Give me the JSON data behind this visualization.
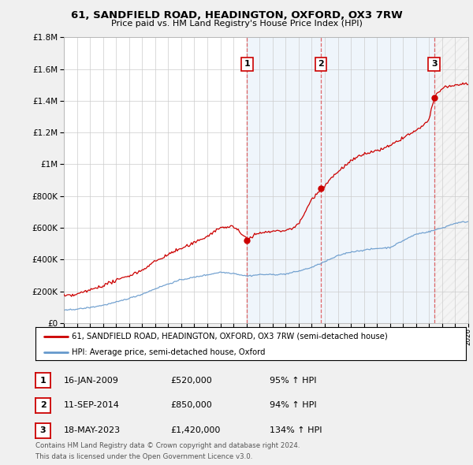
{
  "title": "61, SANDFIELD ROAD, HEADINGTON, OXFORD, OX3 7RW",
  "subtitle": "Price paid vs. HM Land Registry's House Price Index (HPI)",
  "legend_line1": "61, SANDFIELD ROAD, HEADINGTON, OXFORD, OX3 7RW (semi-detached house)",
  "legend_line2": "HPI: Average price, semi-detached house, Oxford",
  "footer1": "Contains HM Land Registry data © Crown copyright and database right 2024.",
  "footer2": "This data is licensed under the Open Government Licence v3.0.",
  "transactions": [
    {
      "label": "1",
      "date": "16-JAN-2009",
      "price": "£520,000",
      "hpi": "95% ↑ HPI",
      "year": 2009.04
    },
    {
      "label": "2",
      "date": "11-SEP-2014",
      "price": "£850,000",
      "hpi": "94% ↑ HPI",
      "year": 2014.7
    },
    {
      "label": "3",
      "date": "18-MAY-2023",
      "price": "£1,420,000",
      "hpi": "134% ↑ HPI",
      "year": 2023.38
    }
  ],
  "transaction_values": [
    520000,
    850000,
    1420000
  ],
  "ylim": [
    0,
    1800000
  ],
  "xlim_min": 1995,
  "xlim_max": 2026,
  "line_color_red": "#cc0000",
  "line_color_blue": "#6699cc",
  "background_color": "#f0f0f0",
  "plot_bg_color": "#ffffff",
  "grid_color": "#cccccc",
  "shading_color": "#ddeeff"
}
